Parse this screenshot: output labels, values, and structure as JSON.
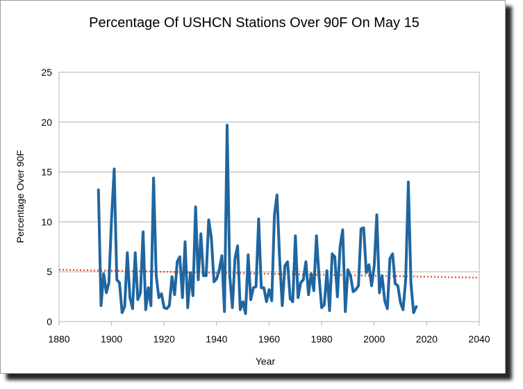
{
  "chart_data": {
    "type": "line",
    "title": "Percentage Of USHCN Stations Over 90F On May 15",
    "xlabel": "Year",
    "ylabel": "Percentage Over 90F",
    "xlim": [
      1880,
      2040
    ],
    "ylim": [
      0,
      25
    ],
    "xticks": [
      1880,
      1900,
      1920,
      1940,
      1960,
      1980,
      2000,
      2020,
      2040
    ],
    "yticks": [
      0,
      5,
      10,
      15,
      20,
      25
    ],
    "grid": true,
    "legend": false,
    "series": [
      {
        "color": "#1f66a0",
        "x": [
          1895,
          1896,
          1897,
          1898,
          1899,
          1900,
          1901,
          1902,
          1903,
          1904,
          1905,
          1906,
          1907,
          1908,
          1909,
          1910,
          1911,
          1912,
          1913,
          1914,
          1915,
          1916,
          1917,
          1918,
          1919,
          1920,
          1921,
          1922,
          1923,
          1924,
          1925,
          1926,
          1927,
          1928,
          1929,
          1930,
          1931,
          1932,
          1933,
          1934,
          1935,
          1936,
          1937,
          1938,
          1939,
          1940,
          1941,
          1942,
          1943,
          1944,
          1945,
          1946,
          1947,
          1948,
          1949,
          1950,
          1951,
          1952,
          1953,
          1954,
          1955,
          1956,
          1957,
          1958,
          1959,
          1960,
          1961,
          1962,
          1963,
          1964,
          1965,
          1966,
          1967,
          1968,
          1969,
          1970,
          1971,
          1972,
          1973,
          1974,
          1975,
          1976,
          1977,
          1978,
          1979,
          1980,
          1981,
          1982,
          1983,
          1984,
          1985,
          1986,
          1987,
          1988,
          1989,
          1990,
          1991,
          1992,
          1993,
          1994,
          1995,
          1996,
          1997,
          1998,
          1999,
          2000,
          2001,
          2002,
          2003,
          2004,
          2005,
          2006,
          2007,
          2008,
          2009,
          2010,
          2011,
          2012,
          2013,
          2014,
          2015,
          2016
        ],
        "y": [
          13.2,
          1.6,
          4.8,
          2.9,
          3.9,
          10.3,
          15.3,
          4.2,
          3.9,
          0.9,
          1.5,
          6.9,
          2.4,
          1.3,
          6.9,
          2.2,
          2.9,
          9.0,
          1.2,
          3.4,
          1.6,
          14.4,
          4.6,
          2.4,
          2.8,
          1.4,
          1.3,
          1.6,
          4.5,
          2.7,
          6.0,
          6.5,
          2.4,
          8.0,
          1.4,
          4.9,
          2.6,
          11.5,
          4.2,
          8.8,
          4.6,
          4.6,
          10.2,
          8.4,
          4.0,
          4.3,
          5.2,
          6.6,
          1.0,
          19.7,
          4.6,
          1.4,
          6.3,
          7.6,
          1.2,
          2.0,
          0.8,
          6.7,
          2.2,
          3.4,
          3.5,
          10.3,
          3.4,
          3.4,
          2.0,
          3.2,
          2.1,
          10.7,
          12.7,
          6.3,
          1.6,
          5.6,
          6.0,
          2.3,
          2.0,
          8.6,
          2.4,
          3.9,
          4.2,
          6.0,
          2.7,
          4.8,
          3.1,
          8.6,
          4.6,
          1.4,
          1.7,
          5.1,
          1.1,
          6.8,
          6.5,
          2.5,
          7.5,
          9.2,
          1.0,
          5.2,
          4.6,
          3.0,
          3.2,
          3.6,
          9.3,
          9.4,
          4.9,
          5.7,
          3.6,
          5.6,
          10.7,
          2.9,
          4.6,
          2.1,
          1.3,
          6.3,
          6.8,
          3.8,
          3.6,
          1.9,
          1.2,
          4.2,
          14.0,
          3.8,
          0.9,
          1.5
        ]
      },
      {
        "type": "trendline",
        "style": "dotted",
        "color": "#e0533a",
        "x": [
          1880,
          2040
        ],
        "y": [
          5.2,
          4.4
        ]
      }
    ]
  }
}
